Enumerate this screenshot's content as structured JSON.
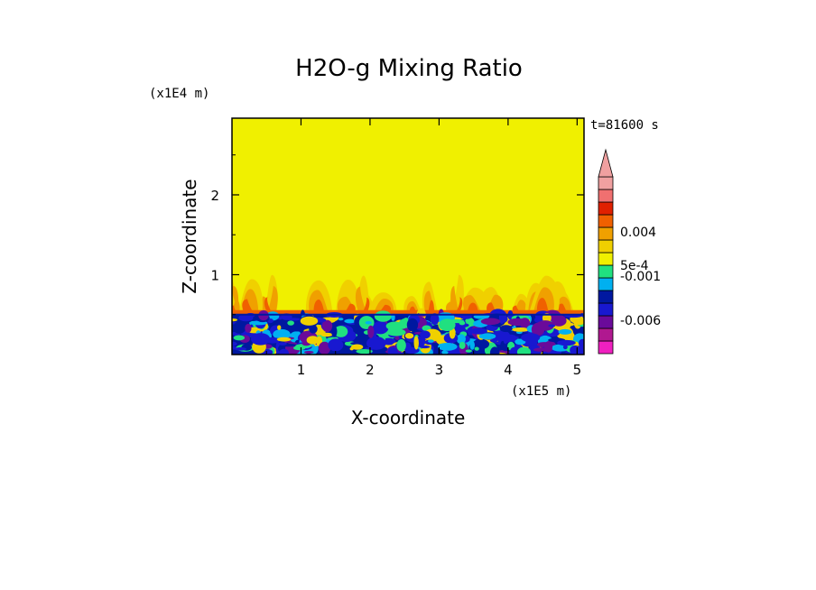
{
  "chart_data": {
    "type": "heatmap",
    "title": "H2O-g Mixing Ratio",
    "xlabel": "X-coordinate",
    "ylabel": "Z-coordinate",
    "x_unit": "(x1E5 m)",
    "y_unit": "(x1E4 m)",
    "time_label": "t=81600 s",
    "xlim": [
      0,
      5.1
    ],
    "ylim": [
      0,
      2.96
    ],
    "x_ticks": [
      {
        "value": 1,
        "label": "1"
      },
      {
        "value": 2,
        "label": "2"
      },
      {
        "value": 3,
        "label": "3"
      },
      {
        "value": 4,
        "label": "4"
      },
      {
        "value": 5,
        "label": "5"
      }
    ],
    "y_ticks": [
      {
        "value": 1,
        "label": "1"
      },
      {
        "value": 2,
        "label": "2"
      }
    ],
    "colorbar": {
      "levels_colors": [
        "#f020c0",
        "#b01890",
        "#6a0a9a",
        "#1818d0",
        "#0018a0",
        "#00b0f0",
        "#20e080",
        "#f0f000",
        "#f0d000",
        "#f0a000",
        "#f06000",
        "#e02000",
        "#f07070",
        "#f0a0a0"
      ],
      "labels": [
        {
          "text": "0.004",
          "position": 0.69
        },
        {
          "text": "5e-4",
          "position": 0.5
        },
        {
          "text": "-0.001",
          "position": 0.44
        },
        {
          "text": "-0.006",
          "position": 0.19
        }
      ]
    },
    "field": {
      "background_color": "#f0f000",
      "boundary_layer_top": 0.5,
      "plume_top": 1.0
    }
  }
}
